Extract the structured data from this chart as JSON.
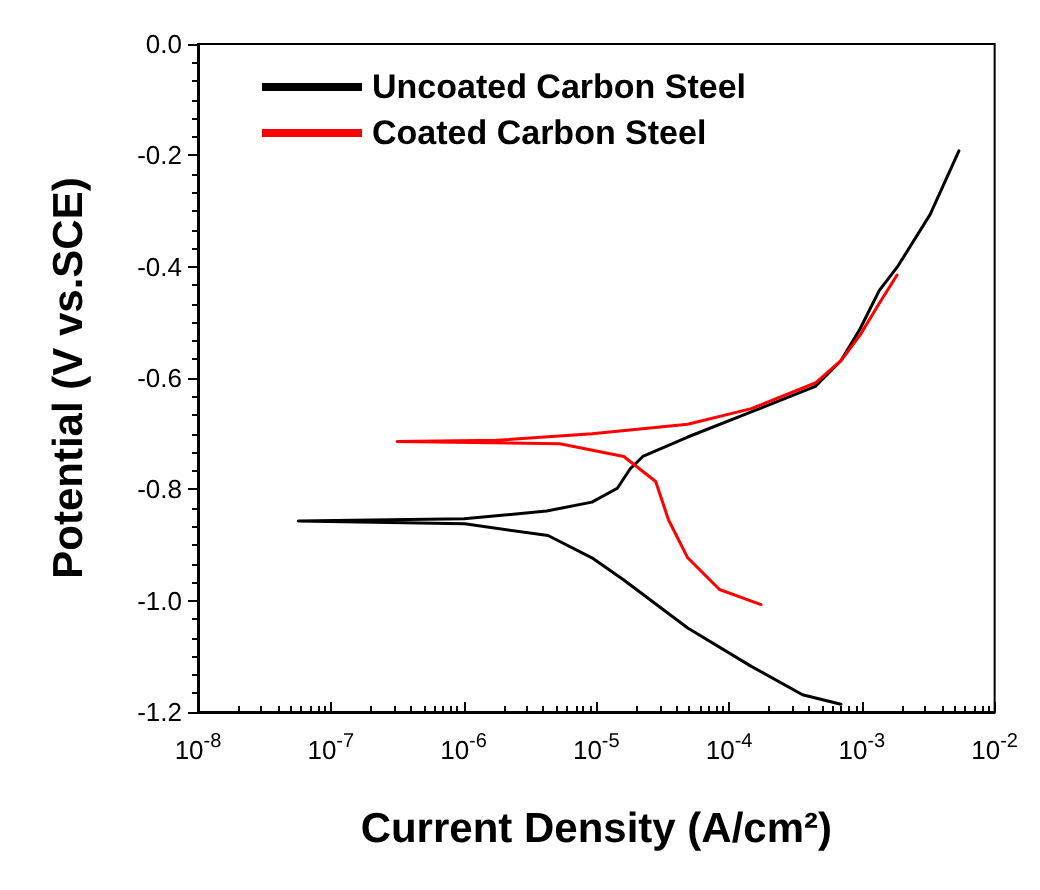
{
  "chart_data": {
    "type": "line",
    "xlabel": "Current Density (A/cm²)",
    "ylabel": "Potential (V vs.SCE)",
    "log": "x",
    "xlim": [
      1e-08,
      0.01
    ],
    "ylim": [
      -1.2,
      0
    ],
    "xticks": [
      {
        "value": 1e-08,
        "label": "10$^{-8}$"
      },
      {
        "value": 1e-07,
        "label": "10$^{-7}$"
      },
      {
        "value": 1e-06,
        "label": "10$^{-6}$"
      },
      {
        "value": 1e-05,
        "label": "10$^{-5}$"
      },
      {
        "value": 0.0001,
        "label": "10$^{-4}$"
      },
      {
        "value": 0.001,
        "label": "10$^{-3}$"
      },
      {
        "value": 0.01,
        "label": "10$^{-2}$"
      }
    ],
    "yticks": [
      {
        "value": -1.2,
        "label": "-1.2"
      },
      {
        "value": -1,
        "label": "-1.0"
      },
      {
        "value": -0.8,
        "label": "-0.8"
      },
      {
        "value": -0.6,
        "label": "-0.6"
      },
      {
        "value": -0.4,
        "label": "-0.4"
      },
      {
        "value": -0.2,
        "label": "-0.2"
      },
      {
        "value": 0,
        "label": "0.0"
      }
    ],
    "grid": false,
    "legend": "top left",
    "marker": "none",
    "line_style": "solid",
    "series": [
      {
        "name": "Uncoated Carbon Steel",
        "color": "#000000",
        "x": [
          0.000695,
          0.000357,
          0.000147,
          4.88e-05,
          1.61e-05,
          9.27e-06,
          4.33e-06,
          1.02e-06,
          5.69e-08,
          1.01e-06,
          4.22e-06,
          9.27e-06,
          1.44e-05,
          1.8e-05,
          2.24e-05,
          4.88e-05,
          0.000147,
          0.000446,
          0.000695,
          0.000968,
          0.00135,
          0.00188,
          0.00327,
          0.00538
        ],
        "values": [
          -1.186,
          -1.169,
          -1.118,
          -1.049,
          -0.963,
          -0.923,
          -0.883,
          -0.862,
          -0.857,
          -0.853,
          -0.839,
          -0.823,
          -0.798,
          -0.763,
          -0.741,
          -0.706,
          -0.661,
          -0.615,
          -0.569,
          -0.512,
          -0.443,
          -0.398,
          -0.306,
          -0.192
        ]
      },
      {
        "name": "Coated Carbon Steel",
        "color": "#ff0000",
        "x": [
          0.000174,
          8.47e-05,
          4.88e-05,
          3.5e-05,
          2.8e-05,
          1.61e-05,
          5.32e-06,
          3.16e-07,
          1.76e-06,
          9.27e-06,
          4.88e-05,
          0.000147,
          0.000446,
          0.000695,
          0.000968,
          0.00135,
          0.00184
        ],
        "values": [
          -1.007,
          -0.98,
          -0.923,
          -0.855,
          -0.786,
          -0.741,
          -0.718,
          -0.714,
          -0.712,
          -0.7,
          -0.683,
          -0.655,
          -0.609,
          -0.569,
          -0.523,
          -0.466,
          -0.415
        ]
      }
    ]
  }
}
